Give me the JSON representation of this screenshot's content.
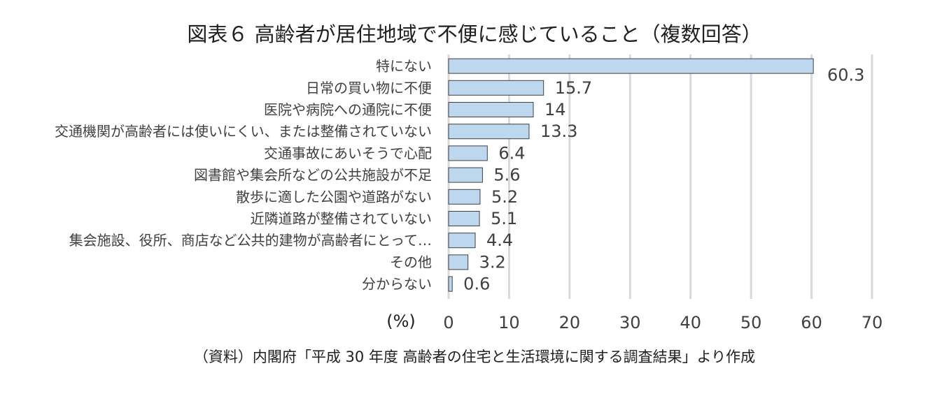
{
  "chart_data": {
    "type": "bar",
    "orientation": "horizontal",
    "title": "図表６ 高齢者が居住地域で不便に感じていること（複数回答）",
    "categories": [
      "特にない",
      "日常の買い物に不便",
      "医院や病院への通院に不便",
      "交通機関が高齢者には使いにくい、または整備されていない",
      "交通事故にあいそうで心配",
      "図書館や集会所などの公共施設が不足",
      "散歩に適した公園や道路がない",
      "近隣道路が整備されていない",
      "集会施設、役所、商店など公共的建物が高齢者にとって…",
      "その他",
      "分からない"
    ],
    "values": [
      60.3,
      15.7,
      14,
      13.3,
      6.4,
      5.6,
      5.2,
      5.1,
      4.4,
      3.2,
      0.6
    ],
    "data_labels": [
      "60.3",
      "15.7",
      "14",
      "13.3",
      "6.4",
      "5.6",
      "5.2",
      "5.1",
      "4.4",
      "3.2",
      "0.6"
    ],
    "xlabel": "(%)",
    "xlim": [
      0,
      70
    ],
    "xticks": [
      "0",
      "10",
      "20",
      "30",
      "40",
      "50",
      "60",
      "70"
    ],
    "grid": true,
    "bar_color": "#bdd7ee",
    "bar_edge_color": "#404040"
  },
  "source": "（資料）内閣府「平成 30 年度 高齢者の住宅と生活環境に関する調査結果」より作成"
}
